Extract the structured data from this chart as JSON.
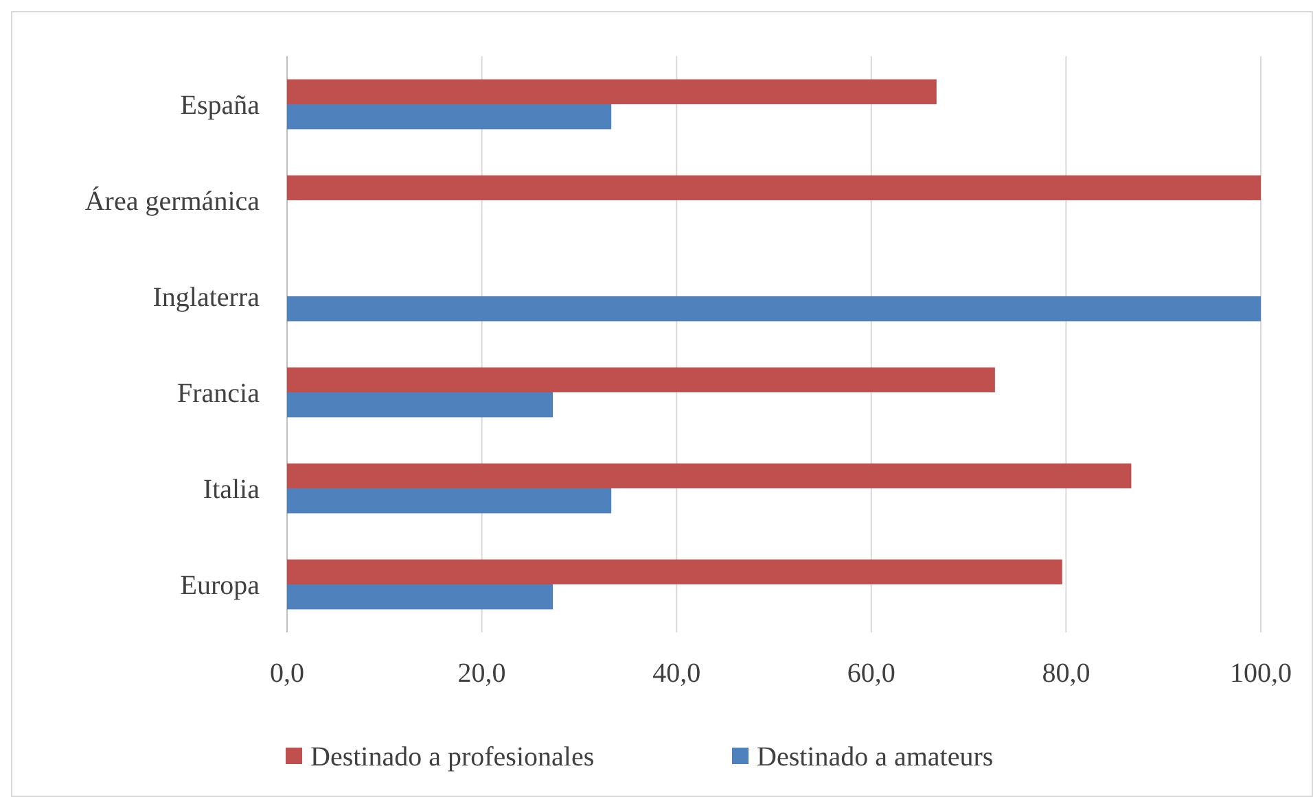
{
  "chart_data": {
    "type": "bar",
    "orientation": "horizontal",
    "categories": [
      "España",
      "Área germánica",
      "Inglaterra",
      "Francia",
      "Italia",
      "Europa"
    ],
    "series": [
      {
        "name": "Destinado a profesionales",
        "color": "#c0504d",
        "values": [
          66.7,
          100,
          null,
          72.7,
          86.7,
          79.6
        ]
      },
      {
        "name": "Destinado a amateurs",
        "color": "#4f81bd",
        "values": [
          33.3,
          null,
          100,
          27.3,
          33.3,
          27.3
        ]
      }
    ],
    "xlim": [
      0,
      100
    ],
    "xticks": [
      {
        "value": 0,
        "label": "0,0"
      },
      {
        "value": 20,
        "label": "20,0"
      },
      {
        "value": 40,
        "label": "40,0"
      },
      {
        "value": 60,
        "label": "60,0"
      },
      {
        "value": 80,
        "label": "80,0"
      },
      {
        "value": 100,
        "label": "100,0"
      }
    ],
    "grid": "x",
    "legend": "bottom"
  }
}
